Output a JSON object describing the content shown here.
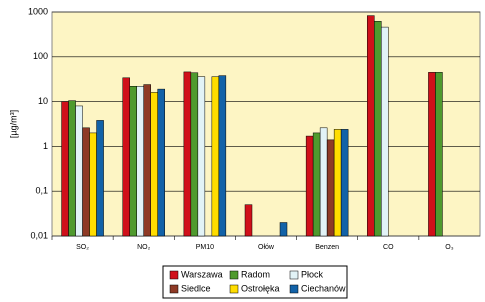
{
  "chart_data": {
    "type": "bar",
    "y_label": "[µg/m³]",
    "categories": [
      "SO₂",
      "NO₂",
      "PM10",
      "Ołów",
      "Benzen",
      "CO",
      "O₃"
    ],
    "series": [
      {
        "name": "Warszawa",
        "color": "#d0101a",
        "values": [
          10,
          34,
          46,
          0.05,
          1.7,
          830,
          45
        ]
      },
      {
        "name": "Radom",
        "color": "#4f9a2e",
        "values": [
          10.5,
          22,
          44,
          null,
          2.0,
          620,
          45
        ]
      },
      {
        "name": "Płock",
        "color": "#e2f3f7",
        "values": [
          8,
          22,
          36,
          null,
          2.6,
          460,
          null
        ]
      },
      {
        "name": "Siedlce",
        "color": "#8e3a26",
        "values": [
          2.6,
          24,
          null,
          null,
          1.4,
          null,
          null
        ]
      },
      {
        "name": "Ostrołęka",
        "color": "#ffdd00",
        "values": [
          2,
          16,
          36,
          null,
          2.4,
          null,
          null
        ]
      },
      {
        "name": "Ciechanów",
        "color": "#1262a8",
        "values": [
          3.8,
          19,
          38,
          0.02,
          2.4,
          null,
          null
        ]
      }
    ],
    "yscale": "log",
    "ylim": [
      0.01,
      1000
    ],
    "yticks": [
      {
        "value": 0.01,
        "label": "0,01"
      },
      {
        "value": 0.1,
        "label": "0,1"
      },
      1,
      10,
      100,
      1000
    ],
    "grid": true,
    "legend": "bottom"
  }
}
